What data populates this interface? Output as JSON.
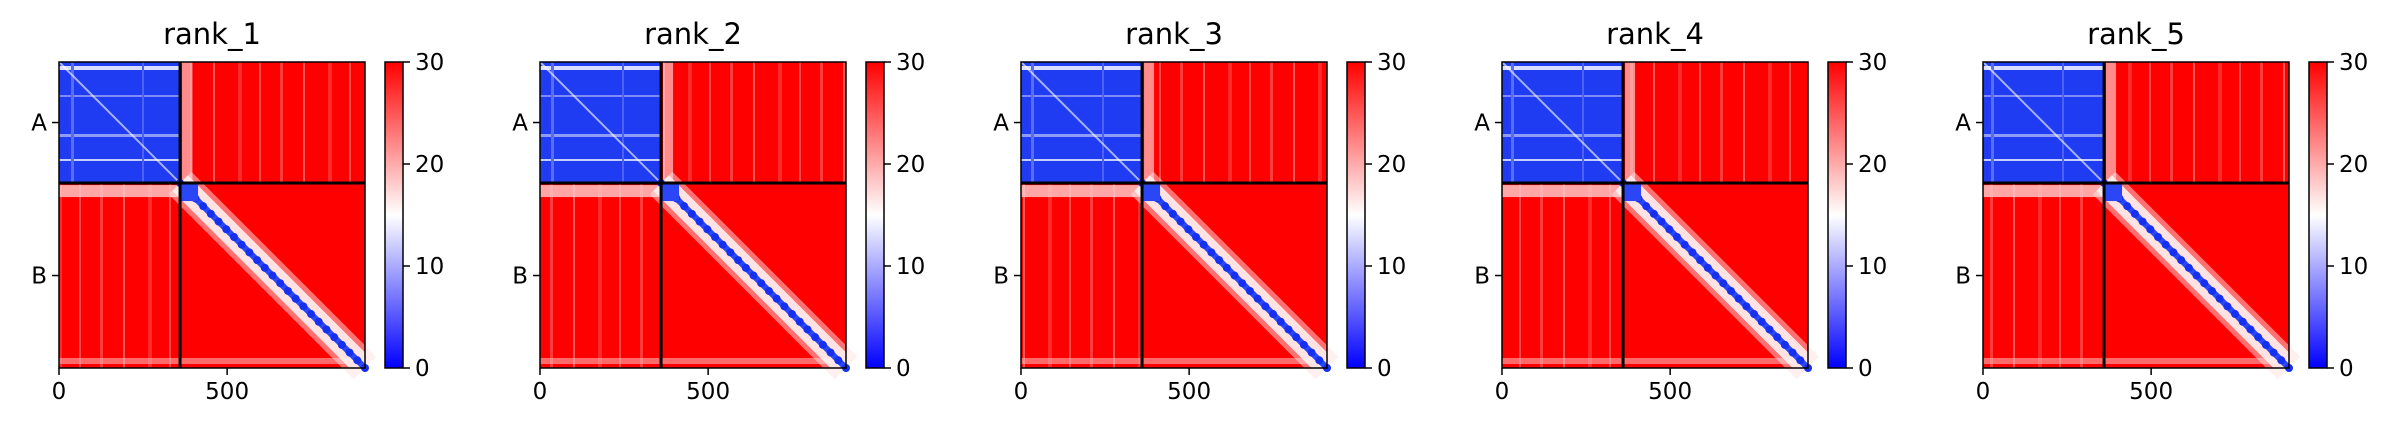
{
  "chart_data": [
    {
      "type": "heatmap",
      "title": "rank_1",
      "x_range": [
        0,
        910
      ],
      "chain_boundary": 360,
      "xticks": [
        0,
        500
      ],
      "y_tick_labels": [
        "A",
        "B"
      ],
      "colorbar": {
        "min": 0,
        "max": 30,
        "ticks": [
          0,
          10,
          20,
          30
        ]
      },
      "colormap": [
        "#0000ff",
        "#ffffff",
        "#ff0000"
      ],
      "blocks": {
        "AA": "low",
        "AB": "high",
        "BA": "high",
        "BB": "diagonal-low"
      }
    },
    {
      "type": "heatmap",
      "title": "rank_2",
      "x_range": [
        0,
        910
      ],
      "chain_boundary": 360,
      "xticks": [
        0,
        500
      ],
      "y_tick_labels": [
        "A",
        "B"
      ],
      "colorbar": {
        "min": 0,
        "max": 30,
        "ticks": [
          0,
          10,
          20,
          30
        ]
      },
      "colormap": [
        "#0000ff",
        "#ffffff",
        "#ff0000"
      ],
      "blocks": {
        "AA": "low",
        "AB": "high",
        "BA": "high",
        "BB": "diagonal-low"
      }
    },
    {
      "type": "heatmap",
      "title": "rank_3",
      "x_range": [
        0,
        910
      ],
      "chain_boundary": 360,
      "xticks": [
        0,
        500
      ],
      "y_tick_labels": [
        "A",
        "B"
      ],
      "colorbar": {
        "min": 0,
        "max": 30,
        "ticks": [
          0,
          10,
          20,
          30
        ]
      },
      "colormap": [
        "#0000ff",
        "#ffffff",
        "#ff0000"
      ],
      "blocks": {
        "AA": "low",
        "AB": "high",
        "BA": "high",
        "BB": "diagonal-low"
      }
    },
    {
      "type": "heatmap",
      "title": "rank_4",
      "x_range": [
        0,
        910
      ],
      "chain_boundary": 360,
      "xticks": [
        0,
        500
      ],
      "y_tick_labels": [
        "A",
        "B"
      ],
      "colorbar": {
        "min": 0,
        "max": 30,
        "ticks": [
          0,
          10,
          20,
          30
        ]
      },
      "colormap": [
        "#0000ff",
        "#ffffff",
        "#ff0000"
      ],
      "blocks": {
        "AA": "low",
        "AB": "high",
        "BA": "high",
        "BB": "diagonal-low"
      }
    },
    {
      "type": "heatmap",
      "title": "rank_5",
      "x_range": [
        0,
        910
      ],
      "chain_boundary": 360,
      "xticks": [
        0,
        500
      ],
      "y_tick_labels": [
        "A",
        "B"
      ],
      "colorbar": {
        "min": 0,
        "max": 30,
        "ticks": [
          0,
          10,
          20,
          30
        ]
      },
      "colormap": [
        "#0000ff",
        "#ffffff",
        "#ff0000"
      ],
      "blocks": {
        "AA": "low",
        "AB": "high",
        "BA": "high",
        "BB": "diagonal-low"
      }
    }
  ]
}
